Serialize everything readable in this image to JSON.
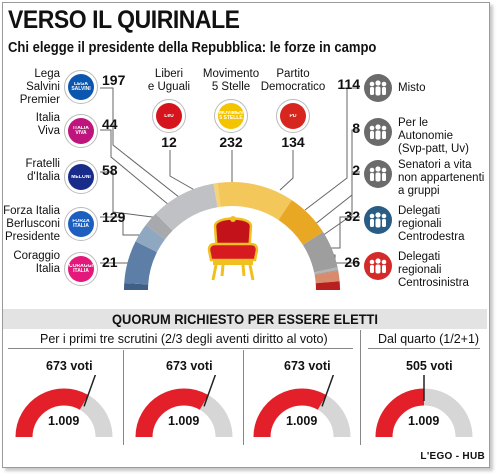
{
  "title": "VERSO IL QUIRINALE",
  "subtitle": "Chi elegge il presidente della Repubblica: le forze in campo",
  "left_groups": [
    {
      "label": "Lega\nSalvini\nPremier",
      "value": "197",
      "logo": "LEGA SALVINI",
      "color": "#0b57b0"
    },
    {
      "label": "Italia\nViva",
      "value": "44",
      "logo": "ITALIA VIVA",
      "color": "#c0147d"
    },
    {
      "label": "Fratelli\nd'Italia",
      "value": "58",
      "logo": "MELONI",
      "color": "#1a2c8a"
    },
    {
      "label": "Forza Italia\nBerlusconi\nPresidente",
      "value": "129",
      "logo": "FORZA ITALIA",
      "color": "#1c5fbf"
    },
    {
      "label": "Coraggio\nItalia",
      "value": "21",
      "logo": "CORAGGIO ITALIA",
      "color": "#e3187a"
    }
  ],
  "top_groups": [
    {
      "label": "Liberi\ne Uguali",
      "value": "12",
      "logo": "LeU",
      "color": "#d6141e"
    },
    {
      "label": "Movimento\n5 Stelle",
      "value": "232",
      "logo": "MOVIMENTO 5 STELLE",
      "color": "#f5c400"
    },
    {
      "label": "Partito\nDemocratico",
      "value": "134",
      "logo": "PD",
      "color": "#d7261e"
    }
  ],
  "right_groups": [
    {
      "label": "Misto",
      "value": "114",
      "icon": "group-icon",
      "color": "#6b6b6b"
    },
    {
      "label": "Per le\nAutonomie\n(Svp-patt, Uv)",
      "value": "8",
      "icon": "group-icon",
      "color": "#6b6b6b"
    },
    {
      "label": "Senatori a vita\nnon appartenenti\na gruppi",
      "value": "2",
      "icon": "group-icon",
      "color": "#6b6b6b"
    },
    {
      "label": "Delegati\nregionali\nCentrodestra",
      "value": "32",
      "icon": "group-icon",
      "color": "#2a5d86"
    },
    {
      "label": "Delegati\nregionali\nCentrosinistra",
      "value": "26",
      "icon": "group-icon",
      "color": "#d42a2a"
    }
  ],
  "hemicycle": {
    "segments": [
      {
        "name": "Coraggio Italia",
        "value": 21,
        "color": "#3f5f85"
      },
      {
        "name": "Forza Italia",
        "value": 129,
        "color": "#5d7ea6"
      },
      {
        "name": "Fratelli d'Italia",
        "value": 58,
        "color": "#8fa8c2"
      },
      {
        "name": "Italia Viva",
        "value": 44,
        "color": "#a7a9ac"
      },
      {
        "name": "Lega",
        "value": 197,
        "color": "#bfc1c4"
      },
      {
        "name": "Liberi e Uguali",
        "value": 12,
        "color": "#f6d27a"
      },
      {
        "name": "Movimento 5 Stelle",
        "value": 232,
        "color": "#f3c75a"
      },
      {
        "name": "Partito Democratico",
        "value": 134,
        "color": "#e9a823"
      },
      {
        "name": "Misto",
        "value": 114,
        "color": "#9e9e9e"
      },
      {
        "name": "Per le Autonomie",
        "value": 8,
        "color": "#b4b4b4"
      },
      {
        "name": "Senatori a vita",
        "value": 2,
        "color": "#8a8a8a"
      },
      {
        "name": "Delegati Centrodestra",
        "value": 32,
        "color": "#d98b6d"
      },
      {
        "name": "Delegati Centrosinistra",
        "value": 26,
        "color": "#b81f1f"
      }
    ]
  },
  "quorum": {
    "title": "QUORUM RICHIESTO PER ESSERE ELETTI",
    "left_caption": "Per i primi tre scrutini (2/3 degli aventi diritto al voto)",
    "right_caption": "Dal quarto (1/2+1)",
    "gauges": [
      {
        "votes": "673 voti",
        "total": "1.009",
        "fraction": 0.667
      },
      {
        "votes": "673 voti",
        "total": "1.009",
        "fraction": 0.667
      },
      {
        "votes": "673 voti",
        "total": "1.009",
        "fraction": 0.667
      },
      {
        "votes": "505 voti",
        "total": "1.009",
        "fraction": 0.5
      }
    ],
    "fill_color": "#e3202a",
    "track_color": "#d6d6d6"
  },
  "credit": "L'EGO - HUB"
}
